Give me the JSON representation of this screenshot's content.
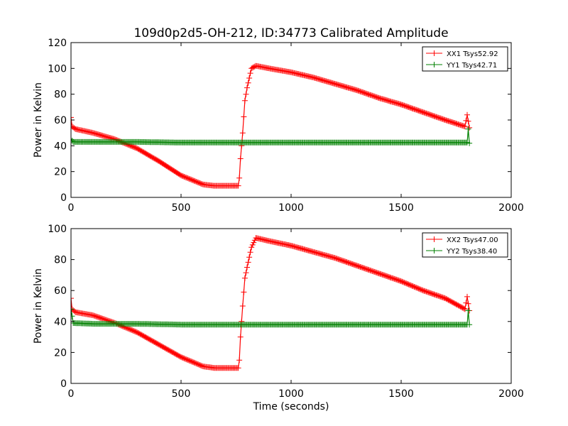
{
  "title": "109d0p2d5-OH-212, ID:34773 Calibrated Amplitude",
  "chart_data": [
    {
      "type": "line",
      "ylabel": "Power in Kelvin",
      "xlabel": "",
      "xlim": [
        0,
        2000
      ],
      "ylim": [
        0,
        120
      ],
      "xticks": [
        "0",
        "500",
        "1000",
        "1500",
        "2000"
      ],
      "yticks": [
        "0",
        "20",
        "40",
        "60",
        "80",
        "100",
        "120"
      ],
      "legend_position": "top-right",
      "series": [
        {
          "name": "XX1 Tsys52.92",
          "color": "#ff0000",
          "points": [
            [
              0,
              62
            ],
            [
              5,
              55
            ],
            [
              20,
              53
            ],
            [
              100,
              50
            ],
            [
              200,
              45
            ],
            [
              300,
              38
            ],
            [
              400,
              28
            ],
            [
              500,
              17
            ],
            [
              600,
              10
            ],
            [
              650,
              9
            ],
            [
              700,
              9
            ],
            [
              760,
              9
            ],
            [
              765,
              15
            ],
            [
              770,
              30
            ],
            [
              780,
              50
            ],
            [
              790,
              75
            ],
            [
              800,
              85
            ],
            [
              820,
              100
            ],
            [
              840,
              102
            ],
            [
              900,
              100
            ],
            [
              1000,
              97
            ],
            [
              1100,
              93
            ],
            [
              1200,
              88
            ],
            [
              1300,
              83
            ],
            [
              1400,
              77
            ],
            [
              1500,
              72
            ],
            [
              1600,
              66
            ],
            [
              1700,
              60
            ],
            [
              1790,
              55
            ],
            [
              1800,
              64
            ],
            [
              1810,
              54
            ]
          ]
        },
        {
          "name": "YY1 Tsys42.71",
          "color": "#008000",
          "points": [
            [
              0,
              45
            ],
            [
              10,
              43
            ],
            [
              100,
              43
            ],
            [
              300,
              43
            ],
            [
              500,
              42.5
            ],
            [
              1000,
              42.5
            ],
            [
              1500,
              42.5
            ],
            [
              1800,
              42.5
            ],
            [
              1805,
              53
            ],
            [
              1810,
              42
            ]
          ]
        }
      ]
    },
    {
      "type": "line",
      "ylabel": "Power in Kelvin",
      "xlabel": "Time (seconds)",
      "xlim": [
        0,
        2000
      ],
      "ylim": [
        0,
        100
      ],
      "xticks": [
        "0",
        "500",
        "1000",
        "1500",
        "2000"
      ],
      "yticks": [
        "0",
        "20",
        "40",
        "60",
        "80",
        "100"
      ],
      "legend_position": "top-right",
      "series": [
        {
          "name": "XX2 Tsys47.00",
          "color": "#ff0000",
          "points": [
            [
              0,
              55
            ],
            [
              5,
              48
            ],
            [
              20,
              46
            ],
            [
              100,
              44
            ],
            [
              200,
              39
            ],
            [
              300,
              33
            ],
            [
              400,
              25
            ],
            [
              500,
              17
            ],
            [
              600,
              11
            ],
            [
              650,
              10
            ],
            [
              700,
              10
            ],
            [
              760,
              10
            ],
            [
              765,
              15
            ],
            [
              770,
              30
            ],
            [
              780,
              50
            ],
            [
              790,
              68
            ],
            [
              800,
              75
            ],
            [
              820,
              88
            ],
            [
              840,
              94
            ],
            [
              900,
              92
            ],
            [
              1000,
              89
            ],
            [
              1100,
              85
            ],
            [
              1200,
              81
            ],
            [
              1300,
              76
            ],
            [
              1400,
              71
            ],
            [
              1500,
              66
            ],
            [
              1600,
              60
            ],
            [
              1700,
              55
            ],
            [
              1790,
              48
            ],
            [
              1800,
              56
            ],
            [
              1810,
              47
            ]
          ]
        },
        {
          "name": "YY2 Tsys38.40",
          "color": "#008000",
          "points": [
            [
              0,
              48
            ],
            [
              10,
              39
            ],
            [
              100,
              38.5
            ],
            [
              300,
              38.5
            ],
            [
              500,
              38
            ],
            [
              1000,
              38
            ],
            [
              1500,
              38
            ],
            [
              1800,
              38
            ],
            [
              1805,
              47
            ],
            [
              1810,
              38
            ]
          ]
        }
      ]
    }
  ]
}
